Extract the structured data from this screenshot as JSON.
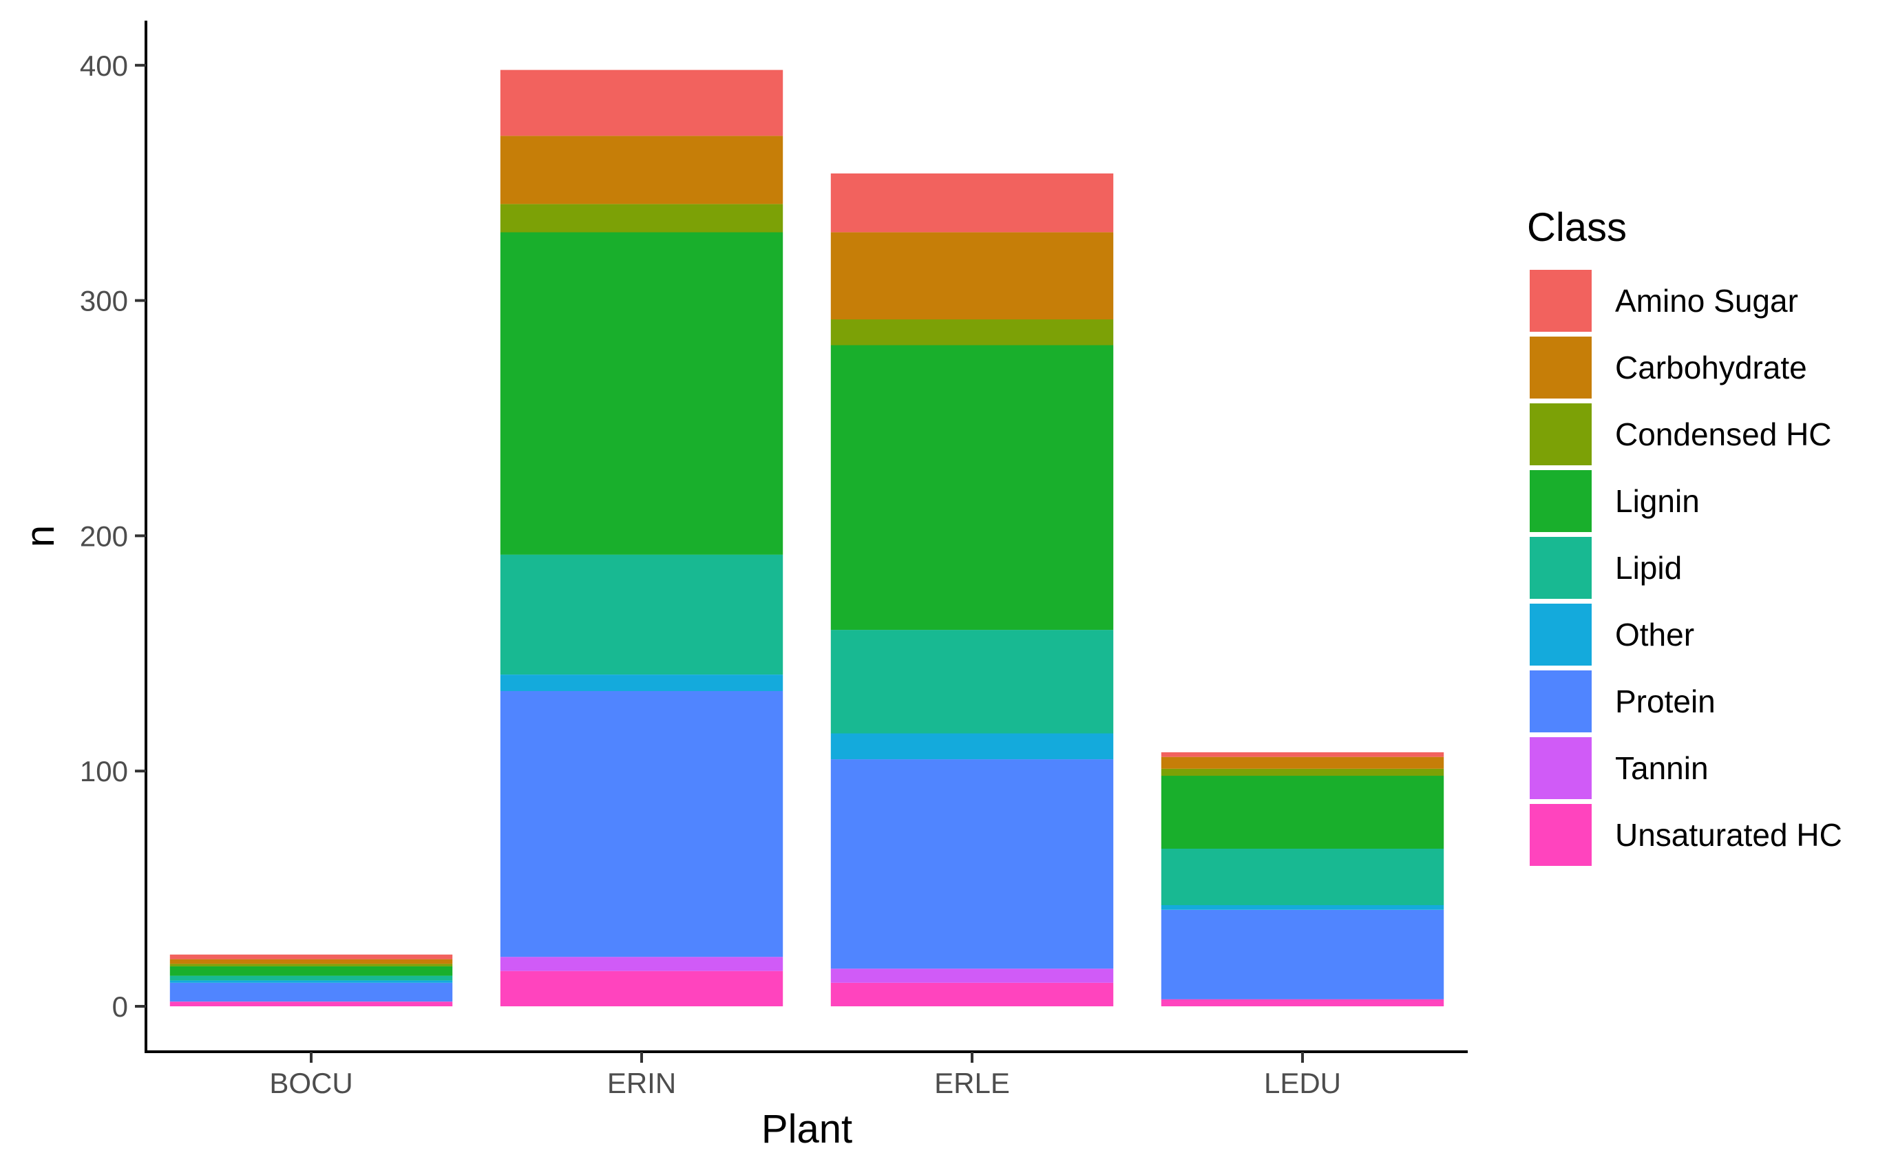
{
  "chart_data": {
    "type": "bar",
    "stacked": true,
    "categories": [
      "BOCU",
      "ERIN",
      "ERLE",
      "LEDU"
    ],
    "xlabel": "Plant",
    "ylabel": "n",
    "ylim": [
      -20,
      418
    ],
    "yticks": [
      0,
      100,
      200,
      300,
      400
    ],
    "grid": false,
    "legend": {
      "title": "Class",
      "position": "right"
    },
    "series": [
      {
        "name": "Unsaturated HC",
        "color": "#FF44BE",
        "values": [
          2,
          15,
          10,
          3
        ]
      },
      {
        "name": "Tannin",
        "color": "#D05BF7",
        "values": [
          0,
          6,
          6,
          0
        ]
      },
      {
        "name": "Protein",
        "color": "#5085FF",
        "values": [
          8,
          113,
          89,
          38
        ]
      },
      {
        "name": "Other",
        "color": "#14AADC",
        "values": [
          1,
          7,
          11,
          2
        ]
      },
      {
        "name": "Lipid",
        "color": "#18B992",
        "values": [
          2,
          51,
          44,
          24
        ]
      },
      {
        "name": "Lignin",
        "color": "#19AF2C",
        "values": [
          4,
          137,
          121,
          31
        ]
      },
      {
        "name": "Condensed HC",
        "color": "#7CA106",
        "values": [
          1,
          12,
          11,
          3
        ]
      },
      {
        "name": "Carbohydrate",
        "color": "#C67E08",
        "values": [
          2,
          29,
          37,
          5
        ]
      },
      {
        "name": "Amino Sugar",
        "color": "#F2625E",
        "values": [
          2,
          28,
          25,
          2
        ]
      }
    ],
    "legend_order": [
      "Amino Sugar",
      "Carbohydrate",
      "Condensed HC",
      "Lignin",
      "Lipid",
      "Other",
      "Protein",
      "Tannin",
      "Unsaturated HC"
    ]
  }
}
